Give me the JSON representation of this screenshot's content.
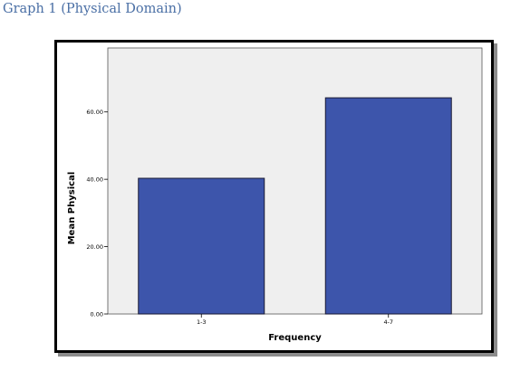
{
  "page": {
    "caption": "Graph  1 (Physical Domain)"
  },
  "colors": {
    "caption": "#4a6fa5",
    "plot_background": "#efefef",
    "bar_fill": "#3d55ab",
    "bar_stroke": "#1a1a33"
  },
  "chart_data": {
    "type": "bar",
    "title": "",
    "xlabel": "Frequency",
    "ylabel": "Mean Physical",
    "categories": [
      "1-3",
      "4-7"
    ],
    "values": [
      40.3,
      64.2
    ],
    "ylim": [
      0,
      79
    ],
    "yticks": [
      0,
      20,
      40,
      60
    ],
    "ytick_labels": [
      "0.00",
      "20.00",
      "40.00",
      "60.00"
    ],
    "grid": false,
    "legend": "none"
  }
}
